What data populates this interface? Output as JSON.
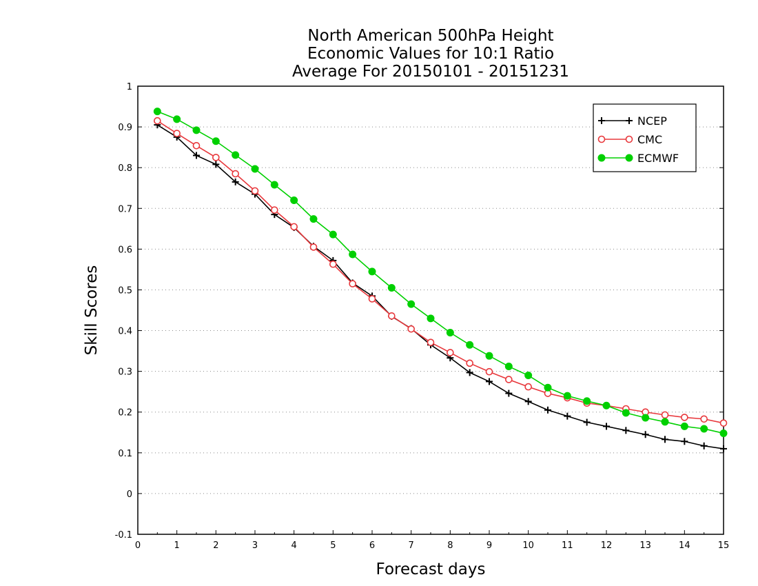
{
  "chart_data": {
    "type": "line",
    "title_lines": [
      "North American 500hPa Height",
      "Economic Values for 10:1 Ratio",
      "Average For 20150101 - 20151231"
    ],
    "xlabel": "Forecast days",
    "ylabel": "Skill Scores",
    "xlim": [
      0,
      15
    ],
    "ylim": [
      -0.1,
      1
    ],
    "xticks": [
      "0",
      "1",
      "2",
      "3",
      "4",
      "5",
      "6",
      "7",
      "8",
      "9",
      "10",
      "11",
      "12",
      "13",
      "14",
      "15"
    ],
    "yticks": [
      "-0.1",
      "0",
      "0.1",
      "0.2",
      "0.3",
      "0.4",
      "0.5",
      "0.6",
      "0.7",
      "0.8",
      "0.9",
      "1"
    ],
    "grid": true,
    "legend_position": "top-right",
    "x": [
      0.5,
      1,
      1.5,
      2,
      2.5,
      3,
      3.5,
      4,
      4.5,
      5,
      5.5,
      6,
      6.5,
      7,
      7.5,
      8,
      8.5,
      9,
      9.5,
      10,
      10.5,
      11,
      11.5,
      12,
      12.5,
      13,
      13.5,
      14,
      14.5,
      15
    ],
    "series": [
      {
        "name": "NCEP",
        "color": "#000000",
        "marker": "plus",
        "values": [
          0.905,
          0.875,
          0.83,
          0.808,
          0.765,
          0.735,
          0.685,
          0.653,
          0.607,
          0.572,
          0.517,
          0.485,
          0.435,
          0.405,
          0.365,
          0.333,
          0.297,
          0.275,
          0.246,
          0.226,
          0.205,
          0.19,
          0.175,
          0.165,
          0.155,
          0.145,
          0.133,
          0.128,
          0.117,
          0.11
        ]
      },
      {
        "name": "CMC",
        "color": "#e8383c",
        "marker": "open-circle",
        "values": [
          0.915,
          0.884,
          0.854,
          0.825,
          0.785,
          0.743,
          0.696,
          0.655,
          0.605,
          0.563,
          0.515,
          0.478,
          0.436,
          0.404,
          0.371,
          0.346,
          0.32,
          0.299,
          0.28,
          0.262,
          0.246,
          0.235,
          0.222,
          0.216,
          0.208,
          0.2,
          0.193,
          0.187,
          0.183,
          0.173
        ]
      },
      {
        "name": "ECMWF",
        "color": "#00d000",
        "marker": "filled-circle",
        "values": [
          0.938,
          0.919,
          0.892,
          0.865,
          0.831,
          0.797,
          0.758,
          0.72,
          0.674,
          0.636,
          0.587,
          0.545,
          0.505,
          0.465,
          0.43,
          0.395,
          0.365,
          0.338,
          0.312,
          0.29,
          0.26,
          0.24,
          0.227,
          0.216,
          0.198,
          0.186,
          0.176,
          0.165,
          0.159,
          0.148
        ]
      }
    ]
  }
}
